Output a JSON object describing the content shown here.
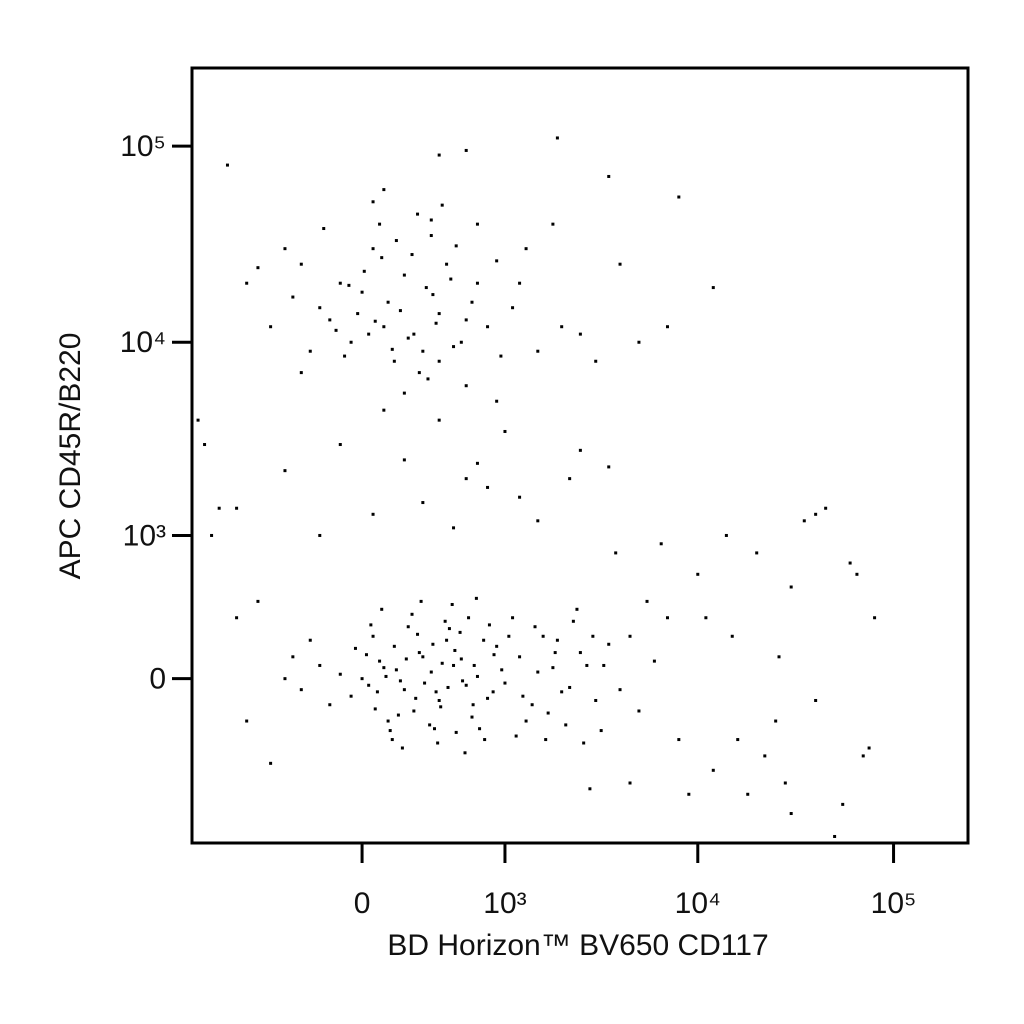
{
  "chart_data": {
    "type": "scatter",
    "xlabel": "BD Horizon™ BV650 CD117",
    "ylabel": "APC CD45R/B220",
    "color": "#000000",
    "xscale": "biexponential",
    "yscale": "biexponential",
    "xlim": [
      -1400,
      240000
    ],
    "ylim": [
      -1300,
      250000
    ],
    "xticks": [
      0,
      {
        "value": 1000,
        "label": "10³"
      },
      {
        "value": 10000,
        "label": "10⁴"
      },
      {
        "value": 100000,
        "label": "10⁵"
      }
    ],
    "yticks": [
      0,
      {
        "value": 1000,
        "label": "10³"
      },
      {
        "value": 10000,
        "label": "10⁴"
      },
      {
        "value": 100000,
        "label": "10⁵"
      }
    ],
    "x": [
      -200,
      100,
      300,
      -100,
      50,
      400,
      250,
      -300,
      150,
      600,
      0,
      200,
      350,
      -50,
      500,
      120,
      -150,
      700,
      80,
      280,
      -400,
      450,
      30,
      180,
      380,
      -250,
      650,
      90,
      320,
      -80,
      520,
      220,
      10,
      400,
      -350,
      160,
      800,
      -20,
      270,
      560,
      140,
      -180,
      360,
      60,
      480,
      -120,
      240,
      900,
      330,
      -60,
      1100,
      1500,
      2000,
      1300,
      3000,
      -500,
      -600,
      700,
      420,
      100,
      -700,
      1800,
      2500,
      200,
      600,
      -300,
      50,
      350,
      950,
      1200,
      5000,
      4000,
      7000,
      12000,
      8000,
      3500,
      1900,
      -900,
      400,
      600,
      -100,
      200,
      600,
      1000,
      300,
      -400,
      1500,
      2500,
      800,
      100,
      400,
      -800,
      2200,
      700,
      1200,
      50,
      500,
      3500,
      -200,
      900,
      0,
      100,
      200,
      300,
      -100,
      400,
      150,
      250,
      50,
      350,
      -50,
      500,
      600,
      120,
      220,
      80,
      450,
      -150,
      700,
      180,
      280,
      -30,
      380,
      550,
      650,
      130,
      30,
      420,
      800,
      900,
      1000,
      1200,
      1400,
      1600,
      1800,
      2000,
      2500,
      3000,
      1100,
      1300,
      -200,
      -300,
      -250,
      -350,
      -400,
      60,
      160,
      260,
      360,
      460,
      560,
      660,
      760,
      860,
      960,
      40,
      140,
      240,
      340,
      440,
      520,
      620,
      720,
      820,
      1500,
      1700,
      1900,
      2200,
      2700,
      3500,
      4000,
      4500,
      5000,
      6000,
      7000,
      3200,
      2400,
      1150,
      90,
      190,
      290,
      390,
      490,
      590,
      690,
      110,
      210,
      310,
      410,
      510,
      20,
      70,
      170,
      270,
      370,
      470,
      570,
      670,
      770,
      870,
      1050,
      1250,
      1450,
      1650,
      1850,
      2100,
      2300,
      2600,
      2900,
      3300,
      5500,
      8000,
      10000,
      12000,
      15000,
      18000,
      20000,
      25000,
      30000,
      35000,
      40000,
      45000,
      55000,
      60000,
      70000,
      80000,
      50000,
      30000,
      22000,
      14000,
      9000,
      6500,
      4500,
      3800,
      2800,
      16000,
      26000,
      65000,
      75000,
      11000,
      -600,
      -700,
      -500,
      -800,
      -1100,
      -1200,
      -1300,
      -1000,
      40000,
      28000
    ],
    "values": [
      15000,
      12000,
      9000,
      20000,
      30000,
      14000,
      11000,
      25000,
      8000,
      13000,
      18000,
      22000,
      35000,
      10000,
      9500,
      16000,
      13000,
      20000,
      40000,
      7000,
      30000,
      25000,
      11000,
      14500,
      12500,
      9000,
      16000,
      27000,
      19000,
      8500,
      31000,
      10500,
      23000,
      8000,
      17000,
      33000,
      12000,
      14000,
      45000,
      10000,
      9200,
      38000,
      17500,
      12800,
      21000,
      11500,
      28000,
      26000,
      6500,
      19500,
      15000,
      9000,
      12000,
      30000,
      8000,
      12000,
      24000,
      40000,
      50000,
      60000,
      20000,
      40000,
      11000,
      5500,
      6000,
      7000,
      52000,
      42000,
      8500,
      20000,
      10000,
      25000,
      12000,
      19000,
      55000,
      70000,
      110000,
      80000,
      90000,
      95000,
      3000,
      2500,
      2000,
      3500,
      1500,
      2200,
      1200,
      2800,
      1800,
      4500,
      4000,
      1400,
      2000,
      2400,
      1600,
      1300,
      1100,
      2300,
      1000,
      5000,
      0,
      50,
      -50,
      100,
      20,
      -100,
      150,
      -150,
      200,
      30,
      -80,
      60,
      -30,
      -200,
      250,
      80,
      180,
      -120,
      10,
      -10,
      120,
      140,
      -60,
      220,
      -180,
      -250,
      -30,
      70,
      -90,
      150,
      -20,
      100,
      -120,
      200,
      50,
      -60,
      120,
      -100,
      300,
      -200,
      60,
      -50,
      180,
      100,
      0,
      -140,
      40,
      -90,
      160,
      -40,
      90,
      -120,
      180,
      -60,
      40,
      260,
      -300,
      320,
      -220,
      280,
      -260,
      300,
      -240,
      260,
      30,
      -160,
      180,
      -40,
      60,
      160,
      -50,
      200,
      -150,
      80,
      300,
      -250,
      350,
      -280,
      350,
      -350,
      400,
      -320,
      380,
      -380,
      420,
      10,
      90,
      -20,
      -130,
      130,
      110,
      -60,
      -170,
      210,
      -240,
      240,
      -10,
      60,
      -300,
      110,
      200,
      -80,
      250,
      -300,
      120,
      -220,
      280,
      -320,
      200,
      60,
      400,
      -300,
      600,
      -500,
      200,
      -700,
      800,
      -200,
      500,
      1200,
      -100,
      1400,
      -800,
      700,
      -400,
      300,
      -1200,
      -900,
      -400,
      1000,
      -700,
      900,
      -600,
      800,
      -650,
      -300,
      100,
      600,
      -350,
      300,
      400,
      -200,
      -450,
      300,
      1000,
      3000,
      4000,
      1400,
      1300,
      -600
    ]
  }
}
